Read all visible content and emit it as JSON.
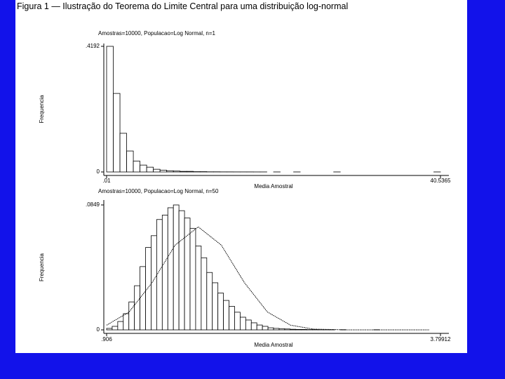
{
  "caption": "Figura 1 — Ilustração do Teorema do Limite Central para uma distribuição log-normal",
  "chart_data": [
    {
      "type": "histogram",
      "title": "Amostras=10000, Populacao=Log Normal, n=1",
      "xlabel": "Media Amostral",
      "ylabel": "Frequencia",
      "bins": [
        0.01,
        0.82053,
        1.63106,
        2.44159,
        3.25212,
        4.06265,
        4.87318,
        5.68371,
        6.49424,
        7.30477,
        8.1153,
        8.92583,
        9.73636,
        10.54689,
        11.35742,
        12.16795,
        12.97848,
        13.78901,
        14.59954,
        15.41007,
        16.2206,
        17.03113,
        17.84166,
        18.65219,
        19.46272,
        20.27325,
        21.08378,
        21.89431,
        22.70484,
        23.51537,
        24.3259,
        25.13643,
        25.94696,
        26.75749,
        27.56802,
        28.37855,
        29.18908,
        29.99961,
        30.81014,
        31.62067,
        32.4312,
        33.24173,
        34.05226,
        34.86279,
        35.67332,
        36.48385,
        37.29438,
        38.10491,
        38.91544,
        39.72597,
        40.5365
      ],
      "values": [
        0.4192,
        0.262,
        0.129,
        0.07,
        0.036,
        0.023,
        0.016,
        0.009,
        0.006,
        0.004,
        0.003,
        0.002,
        0.002,
        0.001,
        0.001,
        0.0005,
        0.0005,
        0.0003,
        0.0003,
        0.0002,
        0.0002,
        0.0002,
        0.0001,
        0.0001,
        0,
        0.0001,
        0,
        0,
        0.0001,
        0,
        0,
        0,
        0,
        0,
        0.0001,
        0,
        0,
        0,
        0,
        0,
        0,
        0,
        0,
        0,
        0,
        0,
        0,
        0,
        0,
        0.0001
      ],
      "color": "#ffffff",
      "edgecolor": "#000000",
      "xlim": [
        0.01,
        40.5365
      ],
      "xticks": [
        {
          "value": 0.01,
          "label": ".01"
        },
        40.5365
      ],
      "ylim": [
        0,
        0.4192
      ],
      "yticks": [
        0,
        {
          "value": 0.4192,
          "label": ".4192"
        }
      ]
    },
    {
      "type": "histogram",
      "title": "Amostras=10000, Populacao=Log Normal, n=50",
      "xlabel": "Media Amostral",
      "ylabel": "Frequencia",
      "bins": [
        0.906,
        0.9542,
        1.0024,
        1.0507,
        1.0989,
        1.1471,
        1.1953,
        1.2435,
        1.2917,
        1.34,
        1.3882,
        1.4364,
        1.4846,
        1.5328,
        1.5811,
        1.6293,
        1.6775,
        1.7257,
        1.7739,
        1.8222,
        1.8704,
        1.9186,
        1.9668,
        2.015,
        2.0632,
        2.1115,
        2.1597,
        2.2079,
        2.2561,
        2.3043,
        2.3526,
        2.4008,
        2.449,
        2.4972,
        2.5454,
        2.5937,
        2.6419,
        2.6901,
        2.7383,
        2.7865,
        2.8347,
        2.883,
        2.9312,
        2.9794,
        3.0276,
        3.0758,
        3.1241,
        3.1723,
        3.2205,
        3.2687,
        3.3169,
        3.3651,
        3.4134,
        3.4616,
        3.5098,
        3.558,
        3.6062,
        3.6545,
        3.7027,
        3.7509,
        3.79912
      ],
      "values": [
        0.001,
        0.0024,
        0.0057,
        0.011,
        0.019,
        0.03,
        0.043,
        0.056,
        0.064,
        0.075,
        0.078,
        0.083,
        0.0849,
        0.081,
        0.076,
        0.069,
        0.057,
        0.049,
        0.039,
        0.032,
        0.025,
        0.02,
        0.016,
        0.012,
        0.0086,
        0.0067,
        0.0048,
        0.0033,
        0.0024,
        0.0014,
        0.001,
        0.0008,
        0.0006,
        0.0004,
        0.0003,
        0.0003,
        0.0002,
        0.0002,
        0.0001,
        0.0001,
        0.0001,
        0,
        0.0001,
        0,
        0,
        0,
        0,
        0,
        0.0001,
        0,
        0,
        0,
        0,
        0,
        0,
        0,
        0,
        0,
        0,
        0
      ],
      "color": "#ffffff",
      "edgecolor": "#000000",
      "curve": {
        "x": [
          0.906,
          1.1,
          1.3,
          1.5,
          1.7,
          1.9,
          2.1,
          2.3,
          2.5,
          2.7,
          3.0,
          3.5,
          3.7
        ],
        "y": [
          0.0032,
          0.0121,
          0.0321,
          0.0576,
          0.07,
          0.0576,
          0.0321,
          0.0121,
          0.0032,
          0.0005,
          0,
          0,
          0
        ],
        "color": "#000000"
      },
      "xlim": [
        0.906,
        3.79912
      ],
      "xticks": [
        {
          "value": 0.906,
          "label": ".906"
        },
        3.79912
      ],
      "ylim": [
        0,
        0.0849
      ],
      "yticks": [
        0,
        {
          "value": 0.0849,
          "label": ".0849"
        }
      ]
    }
  ]
}
